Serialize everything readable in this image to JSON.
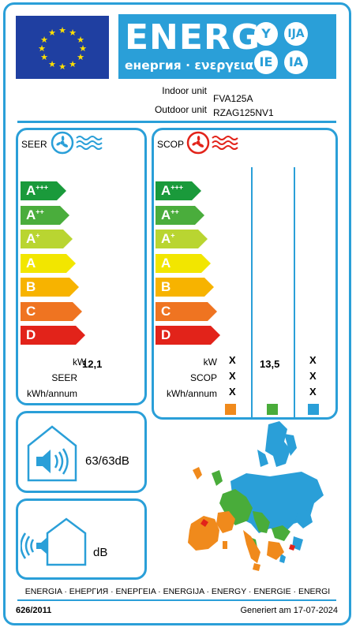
{
  "header": {
    "energy_word": "ENERG",
    "energy_sub": "енергия · ενεργεια",
    "circles": [
      "Y",
      "IJA",
      "IE",
      "IA"
    ]
  },
  "units": {
    "indoor_label": "Indoor unit",
    "indoor_value": "FVA125A",
    "outdoor_label": "Outdoor unit",
    "outdoor_value": "RZAG125NV1"
  },
  "scale_classes": [
    "A+++",
    "A++",
    "A+",
    "A",
    "B",
    "C",
    "D"
  ],
  "scale_colors": [
    "#1a9a3b",
    "#4aad3c",
    "#b9d531",
    "#f2e600",
    "#f7b300",
    "#ef7421",
    "#e2231a"
  ],
  "seer": {
    "title": "SEER",
    "kw_label": "kW",
    "kw_value": "12,1",
    "seer_label": "SEER",
    "energy_label": "kWh/annum"
  },
  "scop": {
    "title": "SCOP",
    "kw_label": "kW",
    "scop_label": "SCOP",
    "energy_label": "kWh/annum",
    "warmer_x": [
      "X",
      "X",
      "X"
    ],
    "average_value": "13,5",
    "colder_x": [
      "X",
      "X",
      "X"
    ],
    "zone_colors": [
      "#f08a1c",
      "#49ac3a",
      "#2a9fd8"
    ]
  },
  "noise": {
    "indoor": "63/63dB",
    "outdoor": "dB"
  },
  "footer": {
    "languages": "ENERGIA · ЕНЕРГИЯ · ΕΝΕΡΓΕΙΑ · ENERGIJA · ENERGY · ENERGIE · ENERGI",
    "regulation": "626/2011",
    "generated": "Generiert am 17-07-2024"
  }
}
